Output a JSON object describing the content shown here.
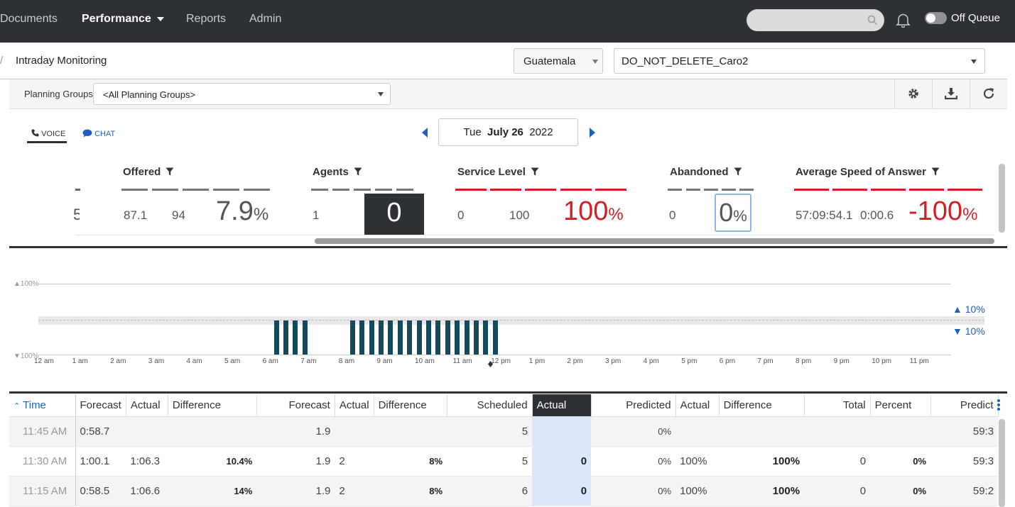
{
  "nav": {
    "items": [
      "Documents",
      "Performance",
      "Reports",
      "Admin"
    ],
    "active": "Performance",
    "queue_toggle_label": "Off Queue"
  },
  "breadcrumb": {
    "separator": "/",
    "current": "Intraday Monitoring"
  },
  "selectors": {
    "location": "Guatemala",
    "schedule": "DO_NOT_DELETE_Caro2"
  },
  "filter": {
    "label": "Planning Groups",
    "value": "<All Planning Groups>"
  },
  "tabs": {
    "voice": "VOICE",
    "chat": "CHAT"
  },
  "date": {
    "weekday": "Tue",
    "month_day": "July 26",
    "year": "2022"
  },
  "metrics": {
    "offered": {
      "title": "Offered",
      "forecast": "87.1",
      "actual": "94",
      "diff": "7.9",
      "unit": "%"
    },
    "agents": {
      "title": "Agents",
      "scheduled": "1",
      "actual": "0"
    },
    "service_level": {
      "title": "Service Level",
      "predicted": "0",
      "actual": "100",
      "diff": "100",
      "unit": "%"
    },
    "abandoned": {
      "title": "Abandoned",
      "value": "0",
      "box": "0",
      "unit": "%"
    },
    "asa": {
      "title": "Average Speed of Answer",
      "forecast": "57:09:54.1",
      "actual": "0:00.6",
      "diff": "-100",
      "unit": "%"
    },
    "partial_left": "5"
  },
  "chart": {
    "y_top_label": "100%",
    "y_bottom_label": "100%",
    "upper_tolerance": "10%",
    "lower_tolerance": "10%",
    "hours": [
      "12 am",
      "1 am",
      "2 am",
      "3 am",
      "4 am",
      "5 am",
      "6 am",
      "7 am",
      "8 am",
      "9 am",
      "10 am",
      "11 am",
      "12 pm",
      "1 pm",
      "2 pm",
      "3 pm",
      "4 pm",
      "5 pm",
      "6 pm",
      "7 pm",
      "8 pm",
      "9 pm",
      "10 pm",
      "11 pm"
    ],
    "active_intervals": [
      "6:00 am",
      "6:15 am",
      "6:30 am",
      "6:45 am",
      "8:00 am",
      "8:15 am",
      "8:30 am",
      "8:45 am",
      "9:00 am",
      "9:15 am",
      "9:30 am",
      "9:45 am",
      "10:00 am",
      "10:15 am",
      "10:30 am",
      "10:45 am",
      "11:00 am",
      "11:15 am",
      "11:30 am",
      "11:45 am"
    ]
  },
  "table": {
    "headers": [
      "Time",
      "Forecast",
      "Actual",
      "Difference",
      "Forecast",
      "Actual",
      "Difference",
      "Scheduled",
      "Actual",
      "Predicted",
      "Actual",
      "Difference",
      "Total",
      "Percent",
      "Predict"
    ],
    "rows": [
      [
        "11:45 AM",
        "0:58.7",
        "",
        "",
        "1.9",
        "",
        "",
        "5",
        "",
        "0%",
        "",
        "",
        "",
        "",
        "59:3"
      ],
      [
        "11:30 AM",
        "1:00.1",
        "1:06.3",
        "10.4%",
        "1.9",
        "2",
        "8%",
        "5",
        "0",
        "0%",
        "100%",
        "100%",
        "0",
        "0%",
        "59:3"
      ],
      [
        "11:15 AM",
        "0:58.5",
        "1:06.6",
        "14%",
        "1.9",
        "2",
        "8%",
        "6",
        "0",
        "0%",
        "100%",
        "100%",
        "0",
        "0%",
        "59:2"
      ]
    ]
  },
  "colors": {
    "nav_bg": "#2d3034",
    "accent_blue": "#1f5fbf",
    "alert_red": "#d21f26",
    "bar_color": "#16495c",
    "highlight": "#dbe8fb"
  },
  "icons": [
    "search-icon",
    "bell-icon",
    "gear-icon",
    "download-icon",
    "refresh-icon",
    "phone-icon",
    "chat-bubble-icon",
    "funnel-icon"
  ]
}
